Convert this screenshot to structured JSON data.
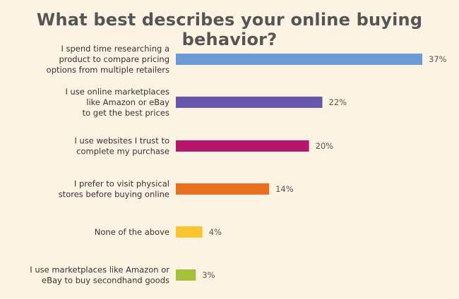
{
  "chart_data": {
    "type": "bar",
    "orientation": "horizontal",
    "title": "What best describes your online buying behavior?",
    "value_suffix": "%",
    "xlim": [
      0,
      37
    ],
    "grid": false,
    "categories": [
      "I spend time researching a product to compare pricing options from multiple retailers",
      "I use online marketplaces like Amazon or eBay to get the best prices",
      "I use websites I trust to complete my purchase",
      "I prefer to visit physical stores before buying online",
      "None of the above",
      "I use marketplaces like Amazon or eBay to buy secondhand goods"
    ],
    "category_lines": [
      [
        "I spend time researching a",
        "product to compare pricing",
        "options from multiple retailers"
      ],
      [
        "I use online marketplaces",
        "like Amazon or eBay",
        "to get the best prices"
      ],
      [
        "I use websites I trust to",
        "complete my purchase"
      ],
      [
        "I prefer to visit physical",
        "stores before buying online"
      ],
      [
        "None of the above"
      ],
      [
        "I use marketplaces like Amazon or",
        "eBay to buy secondhand goods"
      ]
    ],
    "values": [
      37,
      22,
      20,
      14,
      4,
      3
    ],
    "value_labels": [
      "37%",
      "22%",
      "20%",
      "14%",
      "4%",
      "3%"
    ],
    "colors": [
      "#6a9bd6",
      "#6657ab",
      "#b5176d",
      "#e8701e",
      "#fbc52f",
      "#a3c13a"
    ]
  }
}
